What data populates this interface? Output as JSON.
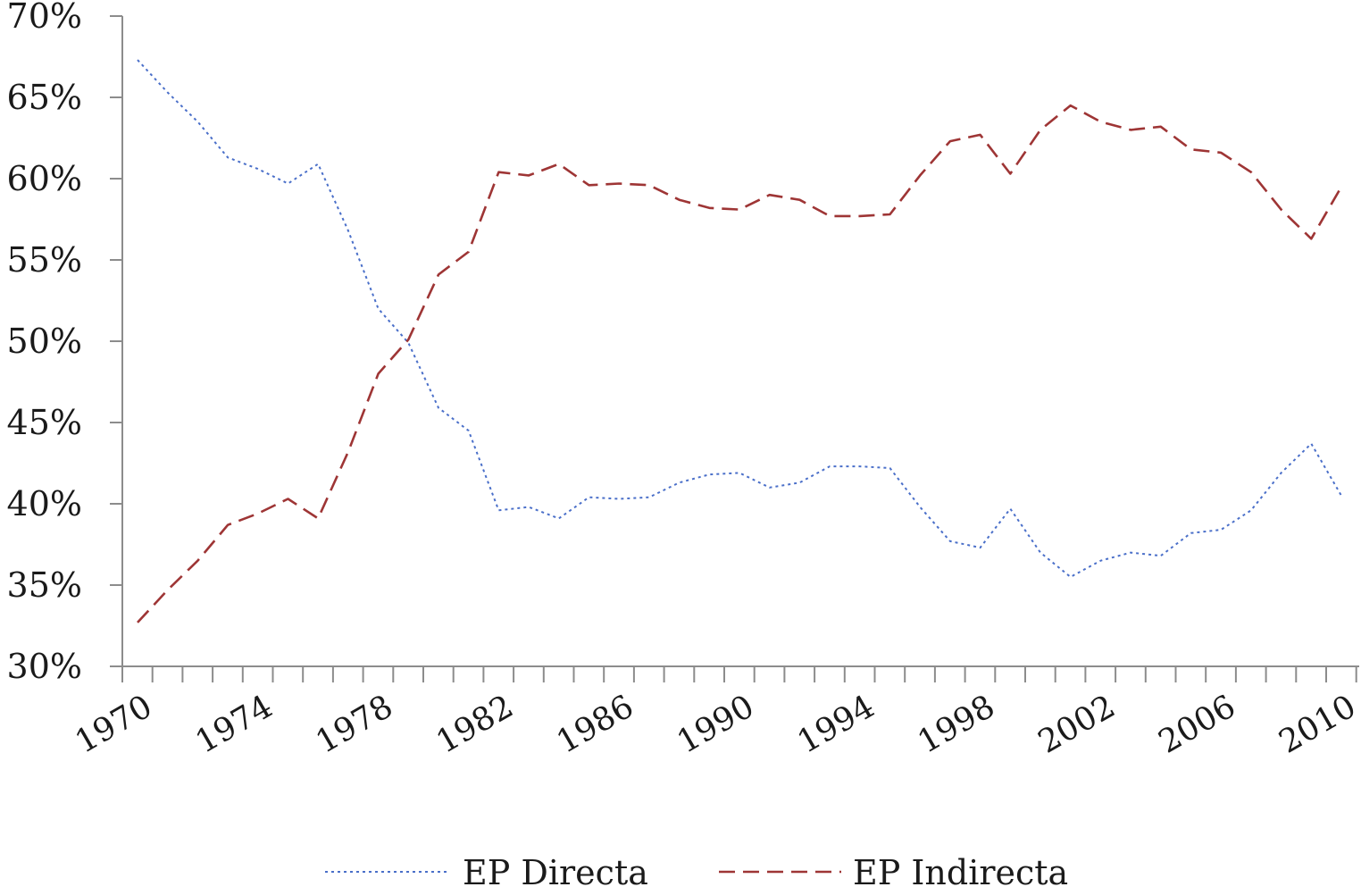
{
  "chart_data": {
    "type": "line",
    "x": [
      1970,
      1971,
      1972,
      1973,
      1974,
      1975,
      1976,
      1977,
      1978,
      1979,
      1980,
      1981,
      1982,
      1983,
      1984,
      1985,
      1986,
      1987,
      1988,
      1989,
      1990,
      1991,
      1992,
      1993,
      1994,
      1995,
      1996,
      1997,
      1998,
      1999,
      2000,
      2001,
      2002,
      2003,
      2004,
      2005,
      2006,
      2007,
      2008,
      2009,
      2010
    ],
    "series": [
      {
        "name": "EP Directa",
        "color": "#4a6fc9",
        "dash": "dotted",
        "values": [
          67.3,
          65.3,
          63.5,
          61.3,
          60.6,
          59.7,
          60.9,
          56.8,
          52.0,
          49.9,
          45.9,
          44.5,
          39.6,
          39.8,
          39.1,
          40.4,
          40.3,
          40.4,
          41.3,
          41.8,
          41.9,
          41.0,
          41.3,
          42.3,
          42.3,
          42.2,
          39.8,
          37.7,
          37.3,
          39.7,
          37.0,
          35.5,
          36.5,
          37.0,
          36.8,
          38.2,
          38.4,
          39.6,
          41.9,
          43.7,
          40.5
        ]
      },
      {
        "name": "EP Indirecta",
        "color": "#9e3535",
        "dash": "dashed",
        "values": [
          32.7,
          34.7,
          36.5,
          38.7,
          39.4,
          40.3,
          39.1,
          43.2,
          48.0,
          50.1,
          54.1,
          55.5,
          60.4,
          60.2,
          60.9,
          59.6,
          59.7,
          59.6,
          58.7,
          58.2,
          58.1,
          59.0,
          58.7,
          57.7,
          57.7,
          57.8,
          60.2,
          62.3,
          62.7,
          60.3,
          63.0,
          64.5,
          63.5,
          63.0,
          63.2,
          61.8,
          61.6,
          60.4,
          58.1,
          56.3,
          59.5
        ]
      }
    ],
    "ylim": [
      30,
      70
    ],
    "y_ticks": [
      "30%",
      "35%",
      "40%",
      "45%",
      "50%",
      "55%",
      "60%",
      "65%",
      "70%"
    ],
    "x_tick_labels": [
      "1970",
      "1974",
      "1978",
      "1982",
      "1986",
      "1990",
      "1994",
      "1998",
      "2002",
      "2006",
      "2010"
    ],
    "title": "",
    "xlabel": "",
    "ylabel": "",
    "grid": false,
    "legend_position": "bottom",
    "axis_color": "#8c8c8c"
  }
}
